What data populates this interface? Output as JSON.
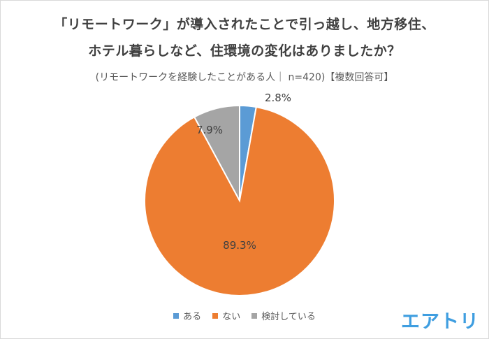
{
  "title_line1": "「リモートワーク」が導入されたことで引っ越し、地方移住、",
  "title_line2": "ホテル暮らしなど、住環境の変化はありましたか？",
  "subtitle": "(リモートワークを経験したことがある人｜ n=420)【複数回答可】",
  "logo": "エアトリ",
  "chart_data": {
    "type": "pie",
    "title": "「リモートワーク」が導入されたことで引っ越し、地方移住、ホテル暮らしなど、住環境の変化はありましたか？",
    "subtitle": "(リモートワークを経験したことがある人｜ n=420)【複数回答可】",
    "categories": [
      "ある",
      "ない",
      "検討している"
    ],
    "values": [
      2.8,
      89.3,
      7.9
    ],
    "labels": [
      "2.8%",
      "89.3%",
      "7.9%"
    ],
    "colors": [
      "#5b9bd5",
      "#ed7d31",
      "#a5a5a5"
    ],
    "legend": "bottom"
  }
}
